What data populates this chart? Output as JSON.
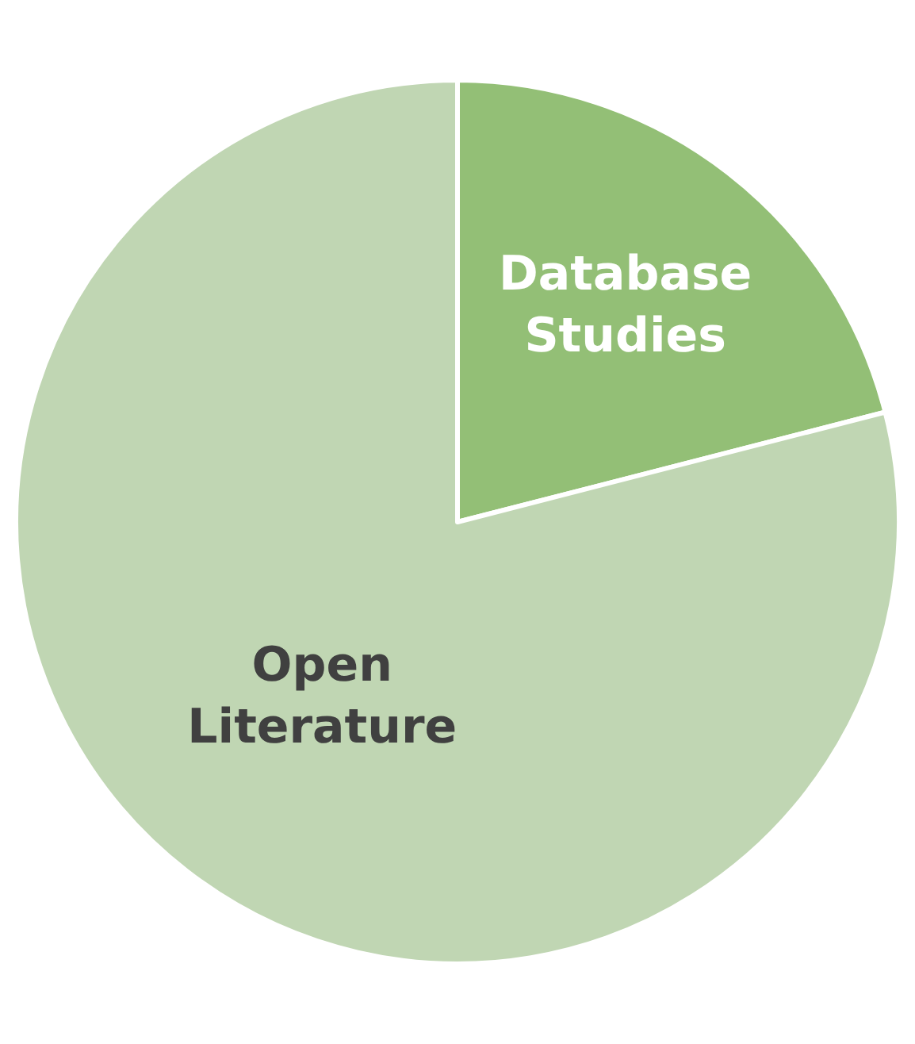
{
  "chart_data": {
    "type": "pie",
    "categories": [
      "Database Studies",
      "Open Literature"
    ],
    "values": [
      21,
      79
    ],
    "colors": [
      "#93bf76",
      "#c0d6b3"
    ],
    "legend": false
  }
}
